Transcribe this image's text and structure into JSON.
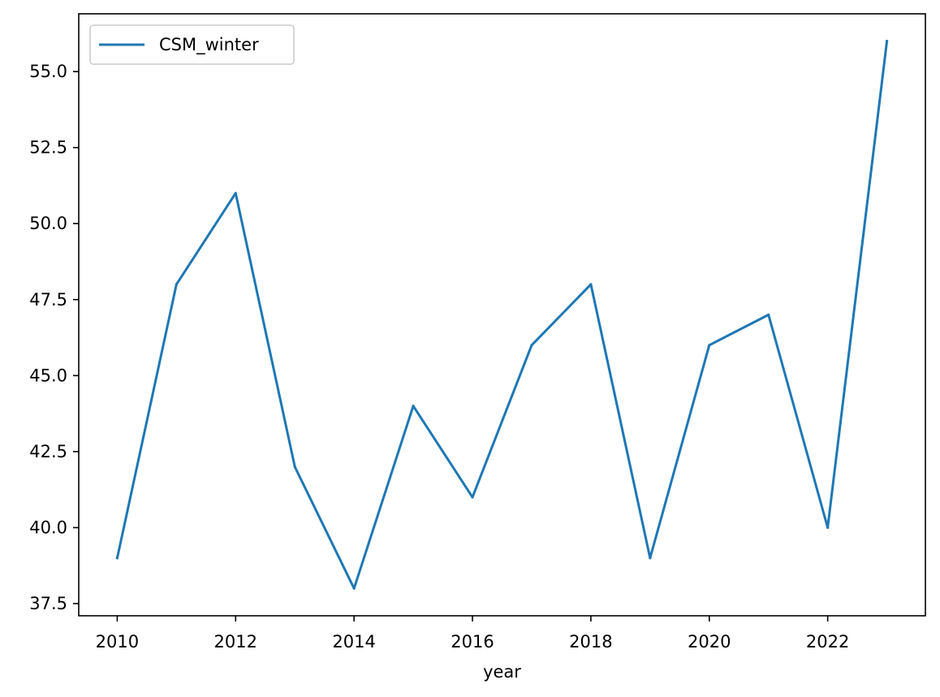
{
  "chart_data": {
    "type": "line",
    "title": "",
    "xlabel": "year",
    "ylabel": "",
    "x": [
      2010,
      2011,
      2012,
      2013,
      2014,
      2015,
      2016,
      2017,
      2018,
      2019,
      2020,
      2021,
      2022,
      2023
    ],
    "series": [
      {
        "name": "CSM_winter",
        "color": "#1f77b4",
        "values": [
          39,
          48,
          51,
          42,
          38,
          44,
          41,
          46,
          48,
          39,
          46,
          47,
          40,
          56
        ]
      }
    ],
    "xlim": [
      2009.35,
      2023.65
    ],
    "ylim": [
      37.1,
      56.9
    ],
    "xticks": [
      2010,
      2012,
      2014,
      2016,
      2018,
      2020,
      2022
    ],
    "xtick_labels": [
      "2010",
      "2012",
      "2014",
      "2016",
      "2018",
      "2020",
      "2022"
    ],
    "yticks": [
      37.5,
      40.0,
      42.5,
      45.0,
      47.5,
      50.0,
      52.5,
      55.0
    ],
    "ytick_labels": [
      "37.5",
      "40.0",
      "42.5",
      "45.0",
      "47.5",
      "50.0",
      "52.5",
      "55.0"
    ],
    "grid": false,
    "legend_position": "top-left"
  }
}
